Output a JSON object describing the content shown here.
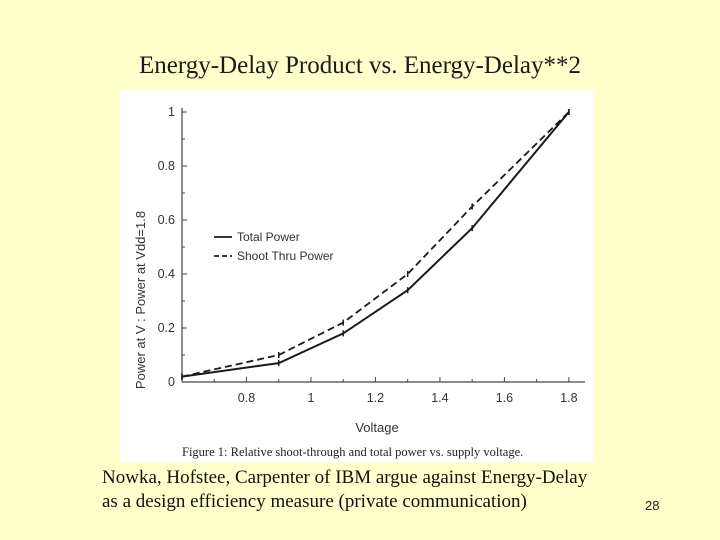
{
  "slide": {
    "title": "Energy-Delay Product vs. Energy-Delay**2",
    "body_lines": [
      "Nowka, Hofstee, Carpenter of IBM argue against Energy-Delay",
      "as a design efficiency measure (private communication)"
    ],
    "slide_number": "28"
  },
  "chart_data": {
    "type": "line",
    "title": "",
    "caption": "Figure 1: Relative shoot-through and total power vs. supply voltage.",
    "xlabel": "Voltage",
    "ylabel": "Power at V : Power at Vdd=1.8",
    "xlim": [
      0.6,
      1.85
    ],
    "ylim": [
      0,
      1
    ],
    "x_ticks": [
      0.8,
      1,
      1.2,
      1.4,
      1.6,
      1.8
    ],
    "x_tick_labels": [
      "0.8",
      "1",
      "1.2",
      "1.4",
      "1.6",
      "1.8"
    ],
    "y_ticks": [
      0,
      0.2,
      0.4,
      0.6,
      0.8,
      1
    ],
    "y_tick_labels": [
      "0",
      "0.2",
      "0.4",
      "0.6",
      "0.8",
      "1"
    ],
    "legend_position": "center-left",
    "series": [
      {
        "name": "Total Power",
        "style": "solid",
        "x": [
          0.6,
          0.9,
          1.1,
          1.3,
          1.5,
          1.8
        ],
        "y": [
          0.02,
          0.07,
          0.18,
          0.34,
          0.57,
          1.0
        ]
      },
      {
        "name": "Shoot Thru Power",
        "style": "dashed",
        "x": [
          0.6,
          0.9,
          1.1,
          1.3,
          1.5,
          1.8
        ],
        "y": [
          0.02,
          0.1,
          0.22,
          0.4,
          0.65,
          1.0
        ]
      }
    ],
    "colors": {
      "line": "#1a1a1a",
      "axis": "#444444"
    }
  }
}
